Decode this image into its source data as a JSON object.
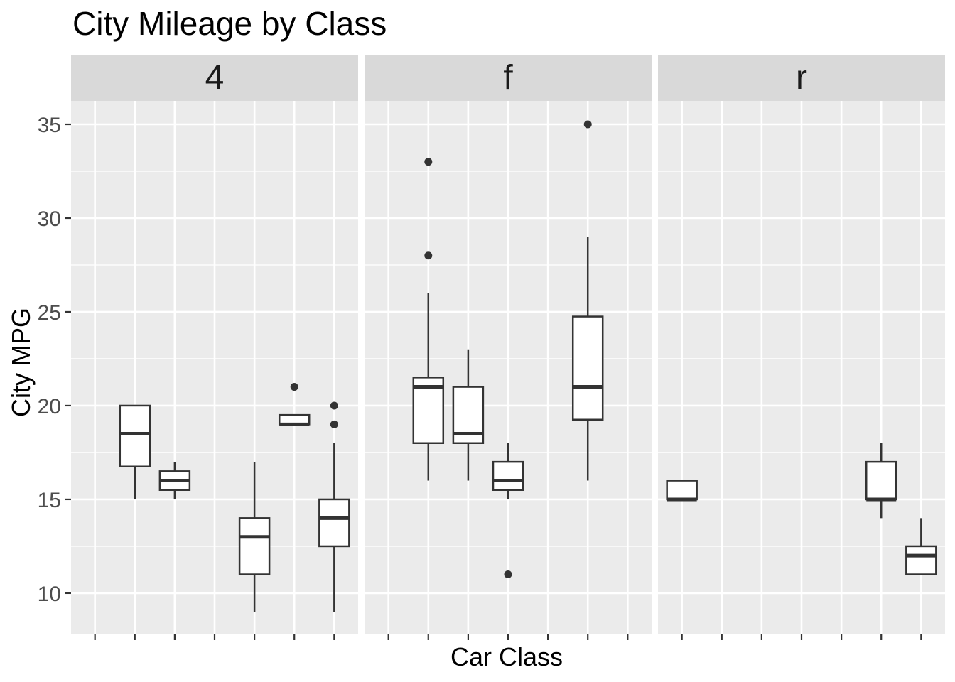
{
  "chart_data": {
    "type": "boxplot",
    "title": "City Mileage by Class",
    "xlabel": "Car Class",
    "ylabel": "City MPG",
    "facets": [
      "4",
      "f",
      "r"
    ],
    "x_positions_per_panel": 7,
    "x_tick_labels": [],
    "y_ticks": [
      10,
      15,
      20,
      25,
      30,
      35
    ],
    "y_minor_gridlines": [
      12.5,
      17.5,
      22.5,
      27.5,
      32.5
    ],
    "ylim": [
      7.8,
      36.25
    ],
    "grid": true,
    "legend": false,
    "boxes": [
      {
        "facet": "4",
        "position": 2,
        "min": 15,
        "q1": 16.75,
        "median": 18.5,
        "q3": 20,
        "max": 20,
        "outliers": []
      },
      {
        "facet": "4",
        "position": 3,
        "min": 15,
        "q1": 15.5,
        "median": 16,
        "q3": 16.5,
        "max": 17,
        "outliers": []
      },
      {
        "facet": "4",
        "position": 5,
        "min": 9,
        "q1": 11,
        "median": 13,
        "q3": 14,
        "max": 17,
        "outliers": []
      },
      {
        "facet": "4",
        "position": 6,
        "min": 19,
        "q1": 19,
        "median": 19,
        "q3": 19.5,
        "max": 19.5,
        "outliers": [
          21
        ]
      },
      {
        "facet": "4",
        "position": 7,
        "min": 9,
        "q1": 12.5,
        "median": 14,
        "q3": 15,
        "max": 18,
        "outliers": [
          19,
          20
        ]
      },
      {
        "facet": "f",
        "position": 2,
        "min": 16,
        "q1": 18,
        "median": 21,
        "q3": 21.5,
        "max": 26,
        "outliers": [
          28,
          33
        ]
      },
      {
        "facet": "f",
        "position": 3,
        "min": 16,
        "q1": 18,
        "median": 18.5,
        "q3": 21,
        "max": 23,
        "outliers": []
      },
      {
        "facet": "f",
        "position": 4,
        "min": 15,
        "q1": 15.5,
        "median": 16,
        "q3": 17,
        "max": 18,
        "outliers": [
          11
        ]
      },
      {
        "facet": "f",
        "position": 6,
        "min": 16,
        "q1": 19.25,
        "median": 21,
        "q3": 24.75,
        "max": 29,
        "outliers": [
          35
        ]
      },
      {
        "facet": "r",
        "position": 1,
        "min": 15,
        "q1": 15,
        "median": 15,
        "q3": 16,
        "max": 16,
        "outliers": []
      },
      {
        "facet": "r",
        "position": 6,
        "min": 14,
        "q1": 15,
        "median": 15,
        "q3": 17,
        "max": 18,
        "outliers": []
      },
      {
        "facet": "r",
        "position": 7,
        "min": 11,
        "q1": 11,
        "median": 12,
        "q3": 12.5,
        "max": 14,
        "outliers": []
      }
    ]
  },
  "colors": {
    "background": "#FFFFFF",
    "panel_bg": "#EBEBEB",
    "strip_bg": "#D9D9D9",
    "strip_text": "#1A1A1A",
    "grid_line": "#FFFFFF",
    "box_line": "#333333",
    "box_fill": "#FFFFFF",
    "median_line": "#333333",
    "outlier_point": "#333333",
    "tick_mark": "#333333",
    "axis_text": "#4D4D4D",
    "title_text": "#000000"
  }
}
